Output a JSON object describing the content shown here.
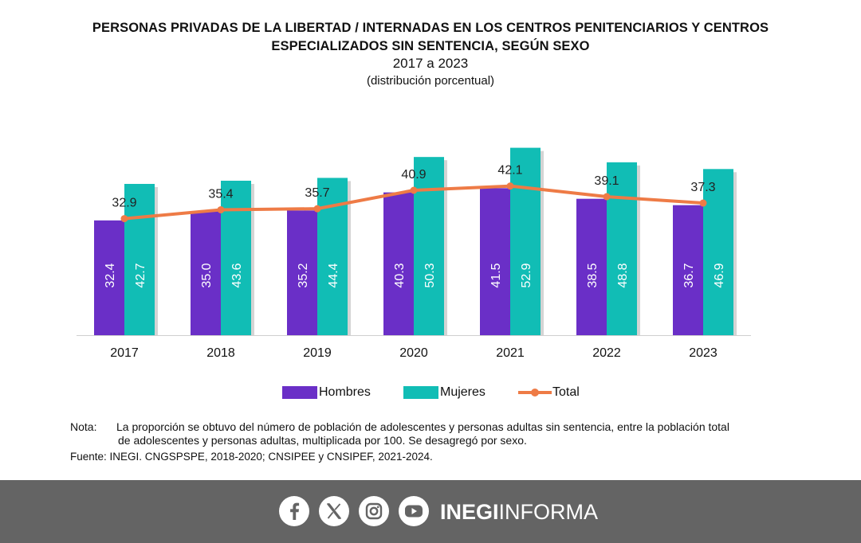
{
  "title": {
    "line1": "PERSONAS PRIVADAS DE LA LIBERTAD / INTERNADAS EN LOS CENTROS PENITENCIARIOS Y CENTROS",
    "line2": "ESPECIALIZADOS SIN SENTENCIA, SEGÚN SEXO",
    "line3": "2017 a 2023",
    "line4": "(distribución porcentual)"
  },
  "chart_data": {
    "type": "bar",
    "categories": [
      "2017",
      "2018",
      "2019",
      "2020",
      "2021",
      "2022",
      "2023"
    ],
    "series": [
      {
        "name": "Hombres",
        "type": "bar",
        "color": "#6a2fc7",
        "values": [
          32.4,
          35.0,
          35.2,
          40.3,
          41.5,
          38.5,
          36.7
        ]
      },
      {
        "name": "Mujeres",
        "type": "bar",
        "color": "#11bdb5",
        "values": [
          42.7,
          43.6,
          44.4,
          50.3,
          52.9,
          48.8,
          46.9
        ]
      },
      {
        "name": "Total",
        "type": "line",
        "color": "#ee7b46",
        "values": [
          32.9,
          35.4,
          35.7,
          40.9,
          42.1,
          39.1,
          37.3
        ]
      }
    ],
    "ylim": [
      0,
      60
    ],
    "grid": false,
    "legend_position": "bottom"
  },
  "note": {
    "label": "Nota:",
    "text1": "La proporción se obtuvo del número de población de adolescentes y personas adultas sin sentencia, entre la población total",
    "text2": "de adolescentes y personas adultas, multiplicada por 100. Se desagregó por sexo.",
    "source_label": "Fuente:",
    "source_text": "INEGI. CNGSPSPE, 2018-2020; CNSIPEE y CNSIPEF, 2021-2024."
  },
  "footer": {
    "brand_bold": "INEGI",
    "brand_light": "INFORMA",
    "icons": [
      "facebook-icon",
      "x-icon",
      "instagram-icon",
      "youtube-icon"
    ],
    "background": "#646464"
  }
}
